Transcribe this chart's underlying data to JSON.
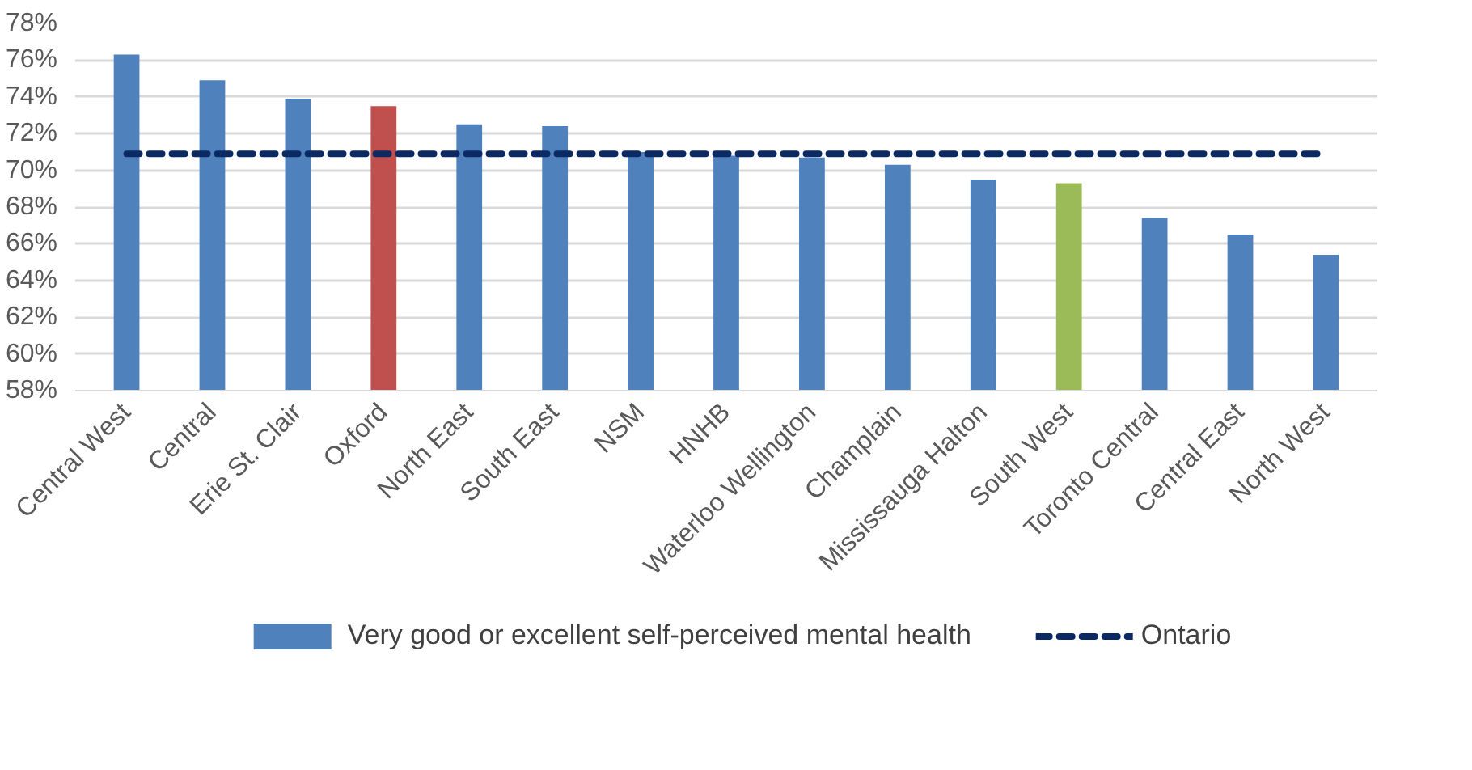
{
  "chart_data": {
    "type": "bar",
    "categories": [
      "Central West",
      "Central",
      "Erie St. Clair",
      "Oxford",
      "North East",
      "South East",
      "NSM",
      "HNHB",
      "Waterloo Wellington",
      "Champlain",
      "Mississauga Halton",
      "South West",
      "Toronto Central",
      "Central East",
      "North West"
    ],
    "series": [
      {
        "name": "Very good or excellent self-perceived mental health",
        "color": "#4f81bd",
        "colors": [
          null,
          null,
          null,
          "#c0504d",
          null,
          null,
          null,
          null,
          null,
          null,
          null,
          "#9bbb59",
          null,
          null,
          null
        ],
        "values": [
          76.3,
          74.9,
          73.9,
          73.5,
          72.5,
          72.4,
          71.0,
          70.8,
          70.7,
          70.3,
          69.5,
          69.3,
          67.4,
          66.5,
          65.4
        ]
      },
      {
        "type": "line",
        "name": "Ontario",
        "color": "#0b2a63",
        "line_style": "dashed",
        "values": [
          70.9,
          70.9,
          70.9,
          70.9,
          70.9,
          70.9,
          70.9,
          70.9,
          70.9,
          70.9,
          70.9,
          70.9,
          70.9,
          70.9,
          70.9
        ]
      }
    ],
    "ylim": [
      58,
      78
    ],
    "yticks": [
      {
        "value": 58,
        "label": "58%"
      },
      {
        "value": 60,
        "label": "60%"
      },
      {
        "value": 62,
        "label": "62%"
      },
      {
        "value": 64,
        "label": "64%"
      },
      {
        "value": 66,
        "label": "66%"
      },
      {
        "value": 68,
        "label": "68%"
      },
      {
        "value": 70,
        "label": "70%"
      },
      {
        "value": 72,
        "label": "72%"
      },
      {
        "value": 74,
        "label": "74%"
      },
      {
        "value": 76,
        "label": "76%"
      },
      {
        "value": 78,
        "label": "78%"
      }
    ],
    "grid": "y",
    "legend": "bottom"
  }
}
